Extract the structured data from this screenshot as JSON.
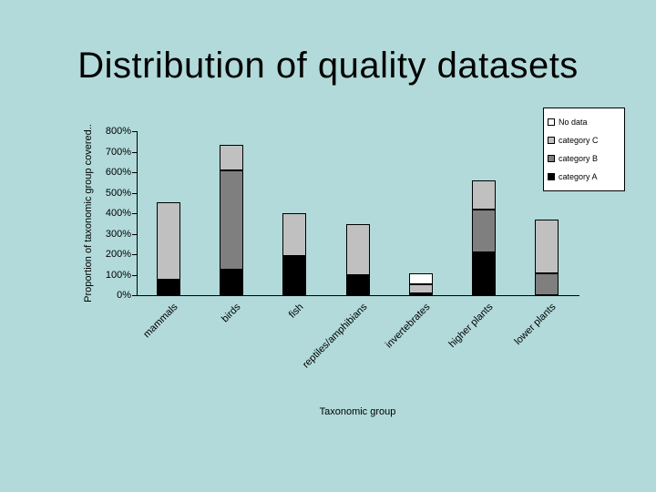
{
  "slide": {
    "title": "Distribution of quality datasets"
  },
  "chart_data": {
    "type": "bar",
    "stacked": true,
    "title": "Distribution of quality datasets",
    "xlabel": "Taxonomic group",
    "ylabel": "Proportion of taxonomic group covered..",
    "ylim": [
      0,
      800
    ],
    "ytick_step": 100,
    "ytick_suffix": "%",
    "grid": false,
    "background_color": "#b2dada",
    "categories": [
      "mammals",
      "birds",
      "fish",
      "reptiles/amphibians",
      "invertebrates",
      "higher plants",
      "lower plants"
    ],
    "series": [
      {
        "name": "category A",
        "color": "#000000",
        "values": [
          75,
          125,
          190,
          100,
          10,
          210,
          0
        ]
      },
      {
        "name": "category B",
        "color": "#7f7f7f",
        "values": [
          0,
          485,
          0,
          0,
          0,
          210,
          105
        ]
      },
      {
        "name": "category C",
        "color": "#c0c0c0",
        "values": [
          380,
          125,
          210,
          245,
          45,
          140,
          265
        ]
      },
      {
        "name": "No data",
        "color": "#ffffff",
        "values": [
          0,
          0,
          0,
          0,
          50,
          0,
          0
        ]
      }
    ],
    "totals": [
      455,
      735,
      400,
      345,
      105,
      560,
      370
    ],
    "legend": {
      "position": "top-right",
      "entries": [
        "No data",
        "category C",
        "category B",
        "category A"
      ]
    }
  }
}
